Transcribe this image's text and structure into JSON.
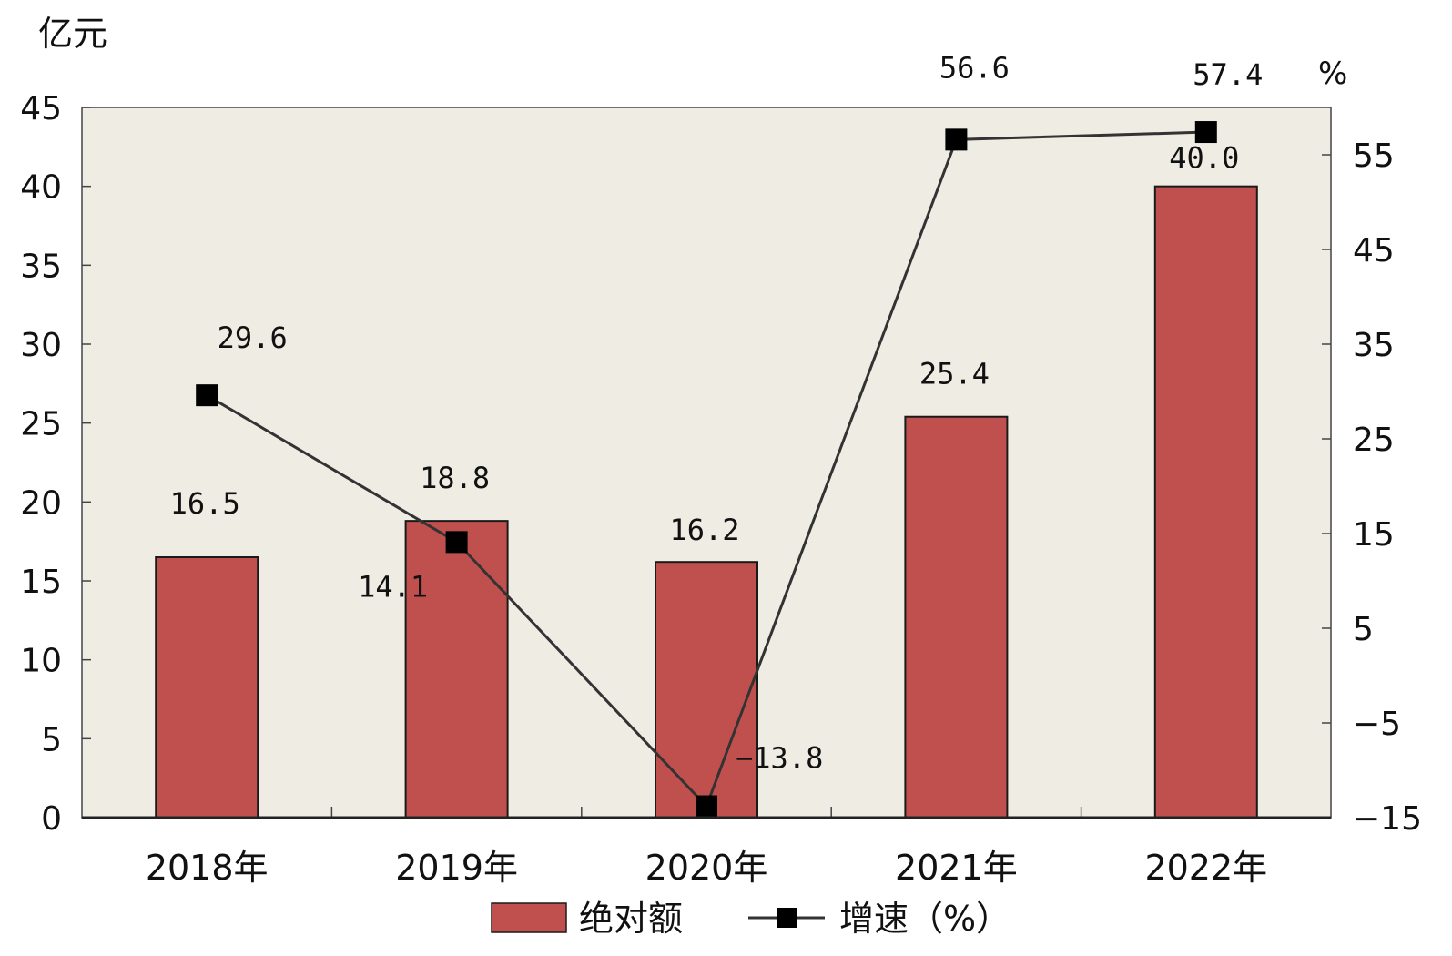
{
  "chart_data": {
    "type": "bar",
    "categories": [
      "2018年",
      "2019年",
      "2020年",
      "2021年",
      "2022年"
    ],
    "y_left_label": "亿元",
    "y_right_label": "%",
    "y_left_lim": [
      0,
      45
    ],
    "y_left_ticks": [
      0,
      5,
      10,
      15,
      20,
      25,
      30,
      35,
      40,
      45
    ],
    "y_right_lim": [
      -15,
      60
    ],
    "y_right_ticks": [
      -15,
      -5,
      5,
      15,
      25,
      35,
      45,
      55
    ],
    "grid": false,
    "legend_position": "bottom",
    "series": [
      {
        "name": "绝对额",
        "type": "bar",
        "axis": "left",
        "values": [
          16.5,
          18.8,
          16.2,
          25.4,
          40.0
        ],
        "labels": [
          "16.5",
          "18.8",
          "16.2",
          "25.4",
          "40.0"
        ],
        "color": "#c0504d"
      },
      {
        "name": "增速（%）",
        "type": "line",
        "axis": "right",
        "values": [
          29.6,
          14.1,
          -13.8,
          56.6,
          57.4
        ],
        "labels": [
          "29.6",
          "14.1",
          "−13.8",
          "56.6",
          "57.4"
        ],
        "color": "#333333"
      }
    ]
  },
  "colors": {
    "plot_background": "#efece4",
    "bar_fill": "#c0504d",
    "bar_stroke": "#1a1a1a",
    "line": "#333333",
    "marker": "#000000"
  }
}
